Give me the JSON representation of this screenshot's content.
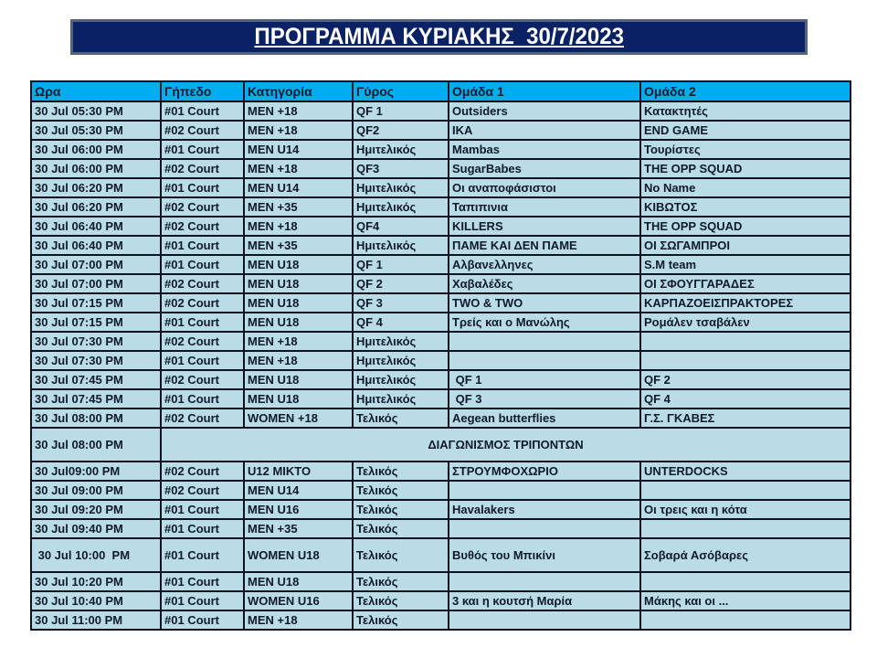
{
  "title": {
    "text": "ΠΡΟΓΡΑΜΜΑ ΚΥΡΙΑΚΗΣ  30/7/2023"
  },
  "colors": {
    "page_bg": "#FFFFFF",
    "header_bg": "#00AEEF",
    "row_bg": "#B9DCE7",
    "border": "#0B1322",
    "title_bg": "#0A2164",
    "title_border": "#51647C",
    "text": "#0F1B2D",
    "title_text": "#FFFFFF"
  },
  "table": {
    "headers": [
      "Ωρα",
      "Γήπεδο",
      "Κατηγορία",
      "Γύρος",
      "Ομάδα 1",
      "Ομάδα 2"
    ],
    "rows": [
      {
        "time": "30 Jul 05:30 PM",
        "court": "#01 Court",
        "category": "MEN +18",
        "round": "QF 1",
        "team1": "Outsiders",
        "team2": "Κατακτητές"
      },
      {
        "time": "30 Jul 05:30 PM",
        "court": "#02 Court",
        "category": "MEN +18",
        "round": "QF2",
        "team1": "IKA",
        "team2": "END GAME"
      },
      {
        "time": "30 Jul 06:00 PM",
        "court": "#01 Court",
        "category": "MEN U14",
        "round": "Ημιτελικός",
        "team1": "Mambas",
        "team2": "Τουρίστες"
      },
      {
        "time": "30 Jul 06:00 PM",
        "court": "#02 Court",
        "category": "MEN +18",
        "round": "QF3",
        "team1": "SugarBabes",
        "team2": "THE OPP SQUAD"
      },
      {
        "time": "30 Jul 06:20 PM",
        "court": "#01 Court",
        "category": "MEN U14",
        "round": "Ημιτελικός",
        "team1": "Οι αναποφάσιστοι",
        "team2": "No Name"
      },
      {
        "time": "30 Jul 06:20 PM",
        "court": "#02 Court",
        "category": "MEN +35",
        "round": "Ημιτελικός",
        "team1": "Ταπιπινια",
        "team2": "ΚΙΒΩΤΟΣ"
      },
      {
        "time": "30 Jul 06:40 PM",
        "court": "#02 Court",
        "category": "MEN +18",
        "round": "QF4",
        "team1": "KILLERS",
        "team2": "THE OPP SQUAD"
      },
      {
        "time": "30 Jul 06:40 PM",
        "court": "#01 Court",
        "category": "MEN +35",
        "round": "Ημιτελικός",
        "team1": "ΠΑΜΕ ΚΑΙ ΔΕΝ ΠΑΜΕ",
        "team2": "ΟΙ ΣΩΓΑΜΠΡΟΙ"
      },
      {
        "time": "30 Jul 07:00 PM",
        "court": "#01 Court",
        "category": "MEN U18",
        "round": "QF 1",
        "team1": "Αλβανελληνες",
        "team2": "S.M team"
      },
      {
        "time": "30 Jul 07:00 PM",
        "court": "#02 Court",
        "category": "MEN U18",
        "round": "QF 2",
        "team1": "Χαβαλέδες",
        "team2": "ΟΙ ΣΦΟΥΓΓΑΡΑΔΕΣ"
      },
      {
        "time": "30 Jul 07:15 PM",
        "court": "#02 Court",
        "category": "MEN U18",
        "round": "QF 3",
        "team1": "TWO & TWO",
        "team2": "ΚΑΡΠΑΖΟΕΙΣΠΡΑΚΤΟΡΕΣ"
      },
      {
        "time": "30 Jul 07:15 PM",
        "court": "#01 Court",
        "category": "MEN U18",
        "round": "QF 4",
        "team1": "Τρείς και ο Μανώλης",
        "team2": "Ρομάλεν τσαβάλεν"
      },
      {
        "time": "30 Jul 07:30 PM",
        "court": "#02 Court",
        "category": "MEN +18",
        "round": "Ημιτελικός",
        "team1": "",
        "team2": ""
      },
      {
        "time": "30 Jul 07:30 PM",
        "court": "#01 Court",
        "category": "MEN +18",
        "round": "Ημιτελικός",
        "team1": "",
        "team2": ""
      },
      {
        "time": "30 Jul 07:45 PM",
        "court": "#02 Court",
        "category": "MEN U18",
        "round": "Ημιτελικός",
        "team1": " QF 1",
        "team2": "QF 2"
      },
      {
        "time": "30 Jul 07:45 PM",
        "court": "#01 Court",
        "category": "MEN U18",
        "round": "Ημιτελικός",
        "team1": " QF 3",
        "team2": "QF 4"
      },
      {
        "time": "30 Jul 08:00 PM",
        "court": "#02 Court",
        "category": "WOMEN +18",
        "round": "Τελικός",
        "team1": "Aegean butterflies",
        "team2": "Γ.Σ. ΓΚΑΒΕΣ"
      },
      {
        "time": "30 Jul 08:00 PM",
        "merged": "ΔΙΑΓΩΝΙΣΜΟΣ ΤΡΙΠΟΝΤΩΝ",
        "tall": true
      },
      {
        "time": "30 Jul09:00 PM",
        "court": "#02 Court",
        "category": "U12 MIKTO",
        "round": "Τελικός",
        "team1": "ΣΤΡΟΥΜΦΟΧΩΡΙΟ",
        "team2": "UNTERDOCKS"
      },
      {
        "time": "30 Jul 09:00 PM",
        "court": "#02 Court",
        "category": "MEN U14",
        "round": "Τελικός",
        "team1": "",
        "team2": ""
      },
      {
        "time": "30 Jul 09:20 PM",
        "court": "#01 Court",
        "category": "MEN U16",
        "round": "Τελικός",
        "team1": "Havalakers",
        "team2": "Οι τρεις και η κότα"
      },
      {
        "time": "30 Jul 09:40 PM",
        "court": "#01 Court",
        "category": "MEN +35",
        "round": "Τελικός",
        "team1": "",
        "team2": ""
      },
      {
        "time": " 30 Jul 10:00  PM",
        "court": "#01 Court",
        "category": "WOMEN U18",
        "round": "Τελικός",
        "team1": "Βυθός του Μπικίνι",
        "team2": "Σοβαρά Ασόβαρες",
        "tall": true
      },
      {
        "time": "30 Jul 10:20 PM",
        "court": "#01 Court",
        "category": "MEN U18",
        "round": "Τελικός",
        "team1": "",
        "team2": ""
      },
      {
        "time": "30 Jul 10:40 PM",
        "court": "#01 Court",
        "category": "WOMEN U16",
        "round": "Τελικός",
        "team1": "3 και η κουτσή Μαρία",
        "team2": "Μάκης και οι ..."
      },
      {
        "time": "30 Jul 11:00 PM",
        "court": "#01 Court",
        "category": "MEN +18",
        "round": "Τελικός",
        "team1": "",
        "team2": ""
      }
    ]
  }
}
